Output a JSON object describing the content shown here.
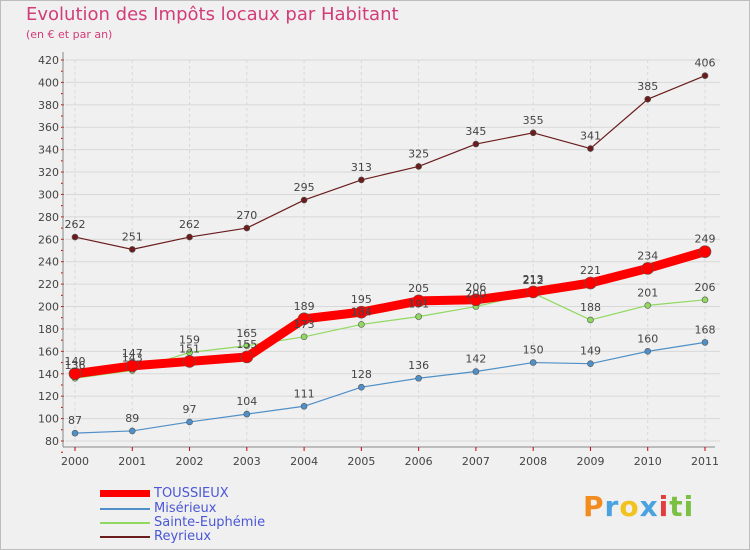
{
  "chart_data": {
    "type": "line",
    "title": "Evolution des Impôts locaux par Habitant",
    "subtitle": "(en € et par an)",
    "categories": [
      "2000",
      "2001",
      "2002",
      "2003",
      "2004",
      "2005",
      "2006",
      "2007",
      "2008",
      "2009",
      "2010",
      "2011"
    ],
    "ylim": [
      80,
      420
    ],
    "yticks": [
      80,
      100,
      120,
      140,
      160,
      180,
      200,
      220,
      240,
      260,
      280,
      300,
      320,
      340,
      360,
      380,
      400,
      420
    ],
    "grid": true,
    "legend_position": "bottom-left",
    "series": [
      {
        "name": "TOUSSIEUX",
        "color": "#ff0000",
        "values": [
          140,
          147,
          151,
          155,
          189,
          195,
          205,
          206,
          213,
          221,
          234,
          249
        ]
      },
      {
        "name": "Misérieux",
        "color": "#4f90c8",
        "values": [
          87,
          89,
          97,
          104,
          111,
          128,
          136,
          142,
          150,
          149,
          160,
          168
        ]
      },
      {
        "name": "Sainte-Euphémie",
        "color": "#90d860",
        "values": [
          136,
          143,
          159,
          165,
          173,
          184,
          191,
          200,
          212,
          188,
          201,
          206
        ]
      },
      {
        "name": "Reyrieux",
        "color": "#6b1c1c",
        "values": [
          262,
          251,
          262,
          270,
          295,
          313,
          325,
          345,
          355,
          341,
          385,
          406
        ]
      }
    ]
  },
  "legend_items": [
    "TOUSSIEUX",
    "Misérieux",
    "Sainte-Euphémie",
    "Reyrieux"
  ],
  "logo": {
    "letters": [
      "P",
      "r",
      "o",
      "x",
      "i",
      "t",
      "i"
    ],
    "colors": [
      "#f28c1e",
      "#4aa3df",
      "#f2c21e",
      "#4aa3df",
      "#e23c3c",
      "#7bc043",
      "#7bc043"
    ]
  }
}
